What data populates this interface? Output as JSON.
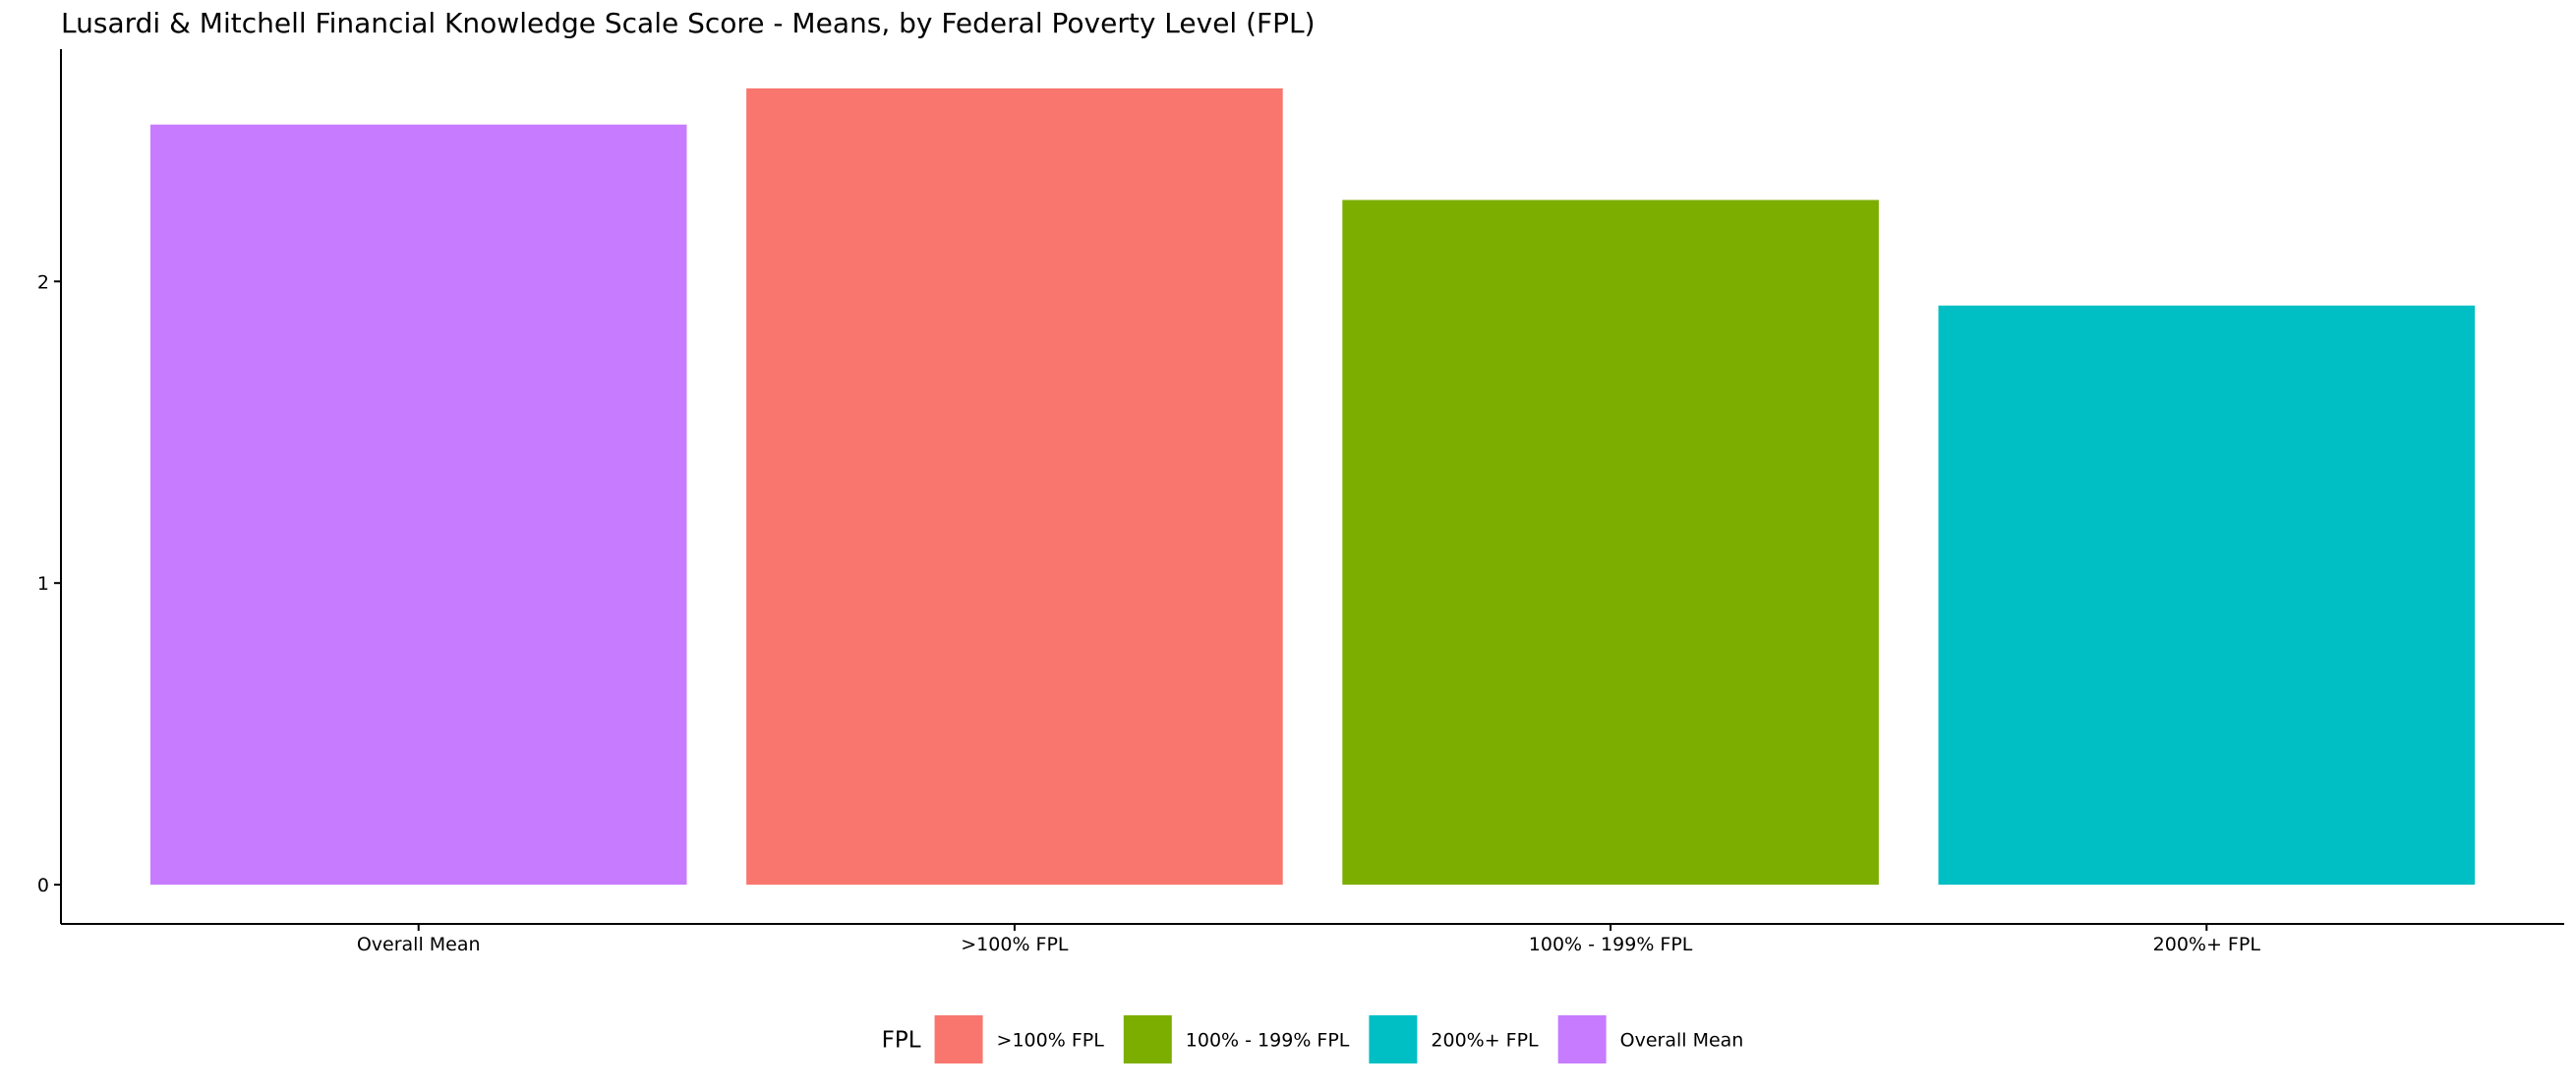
{
  "chart_data": {
    "type": "bar",
    "title": "Lusardi & Mitchell Financial Knowledge Scale Score - Means, by Federal Poverty Level (FPL)",
    "xlabel": "",
    "ylabel": "",
    "categories": [
      "Overall Mean",
      ">100% FPL",
      "100% - 199% FPL",
      "200%+ FPL"
    ],
    "values": [
      2.52,
      2.64,
      2.27,
      1.92
    ],
    "bar_colors": [
      "#C77CFF",
      "#F8766D",
      "#7CAE00",
      "#00BFC4"
    ],
    "ylim": [
      -0.13,
      2.77
    ],
    "yticks": [
      0,
      1,
      2
    ],
    "grid": false,
    "legend": {
      "title": "FPL",
      "position": "bottom",
      "items": [
        {
          "label": ">100% FPL",
          "color": "#F8766D"
        },
        {
          "label": "100% - 199% FPL",
          "color": "#7CAE00"
        },
        {
          "label": "200%+ FPL",
          "color": "#00BFC4"
        },
        {
          "label": "Overall Mean",
          "color": "#C77CFF"
        }
      ]
    }
  }
}
